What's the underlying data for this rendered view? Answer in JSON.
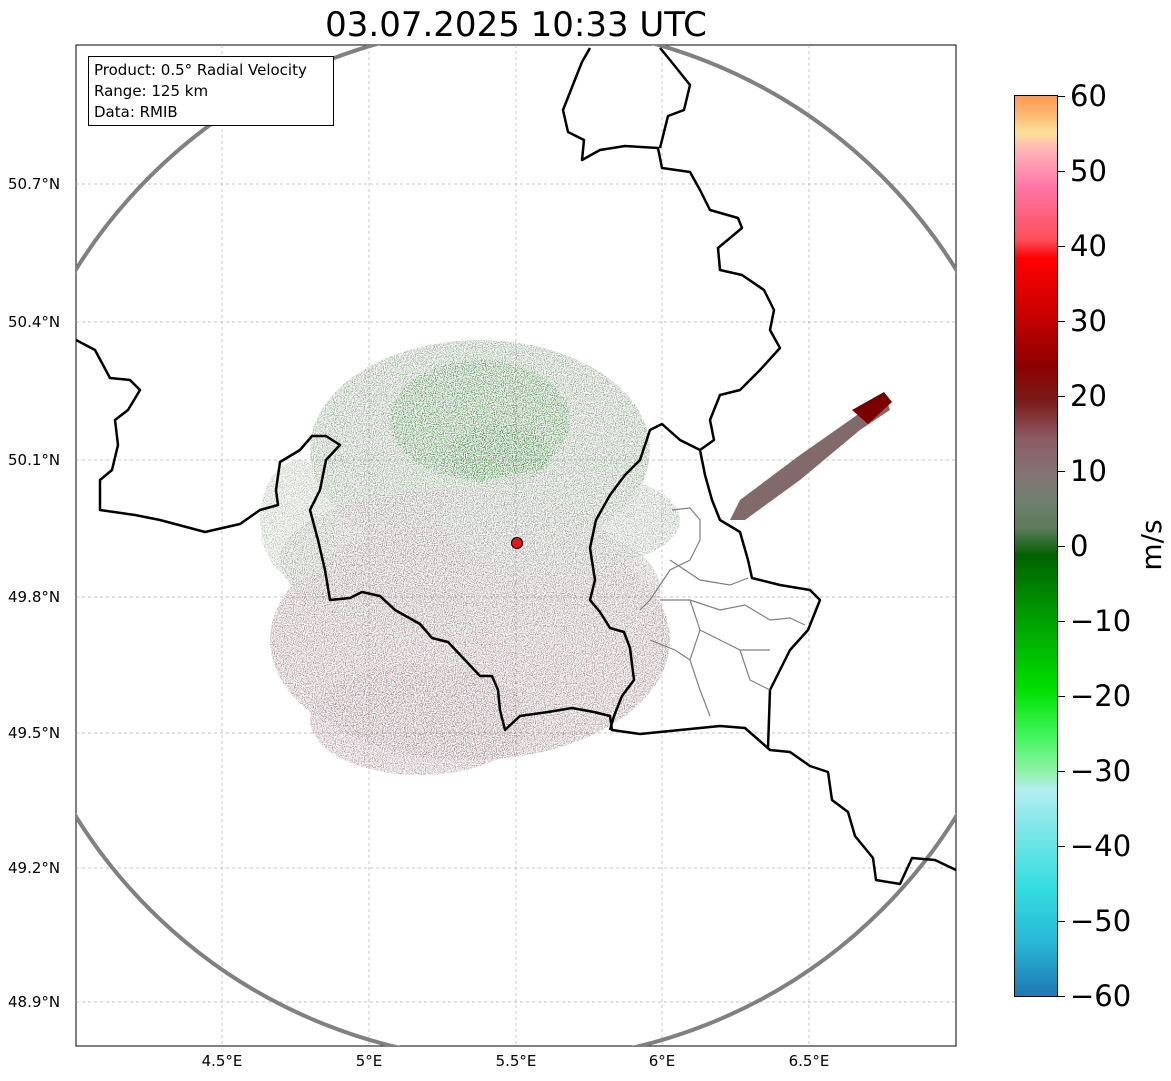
{
  "title": "03.07.2025 10:33 UTC",
  "infobox": {
    "line1": "Product: 0.5° Radial Velocity",
    "line2": "Range: 125 km",
    "line3": "Data: RMIB"
  },
  "axes": {
    "lat_ticks": [
      "50.7°N",
      "50.4°N",
      "50.1°N",
      "49.8°N",
      "49.5°N",
      "49.2°N",
      "48.9°N"
    ],
    "lon_ticks": [
      "4.5°E",
      "5°E",
      "5.5°E",
      "6°E",
      "6.5°E"
    ],
    "lon_range": [
      4.0,
      7.0
    ],
    "lat_range": [
      48.8,
      50.98
    ]
  },
  "radar_site": {
    "lon": 5.505,
    "lat": 49.914
  },
  "colorbar": {
    "label": "m/s",
    "ticks": [
      "60",
      "50",
      "40",
      "30",
      "20",
      "10",
      "0",
      "−10",
      "−20",
      "−30",
      "−40",
      "−50",
      "−60"
    ],
    "range": [
      -60,
      60
    ]
  },
  "colors": {
    "border": "#000000",
    "range_ring": "#808080",
    "grid": "#b0b0b0",
    "site_marker": "#e8141c",
    "inbound_strong": "#006400",
    "near_zero": "#7d7373",
    "outbound_strong": "#7f0000"
  }
}
